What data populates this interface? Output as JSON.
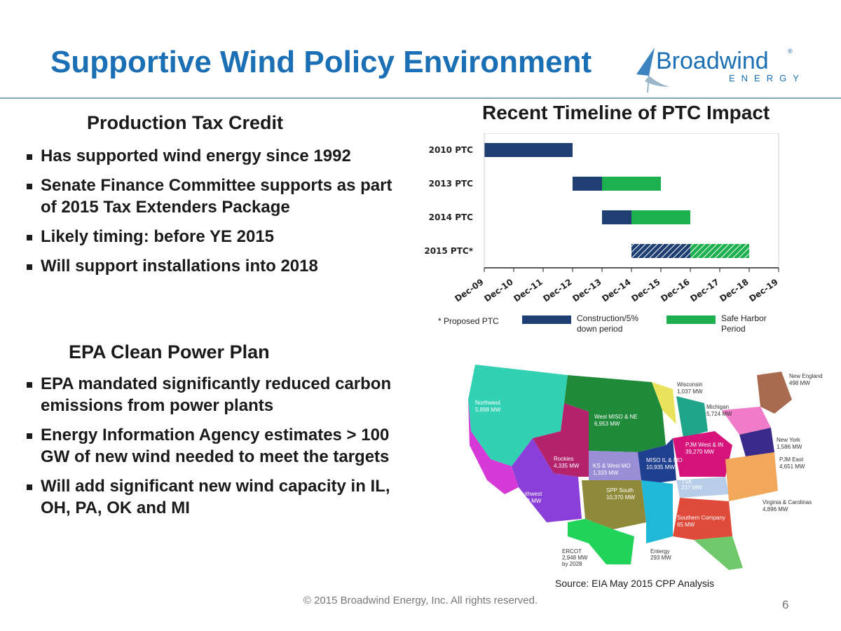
{
  "title": "Supportive Wind Policy Environment",
  "logo": {
    "name": "Broadwind",
    "sub": "ENERGY",
    "registered": "®"
  },
  "ptc_section": {
    "heading": "Production Tax Credit",
    "bullets": [
      "Has supported wind energy since 1992",
      "Senate Finance Committee supports as part of 2015 Tax Extenders Package",
      "Likely timing: before YE 2015",
      "Will support installations into 2018"
    ]
  },
  "epa_section": {
    "heading": "EPA Clean Power Plan",
    "bullets": [
      "EPA mandated significantly reduced carbon emissions from power plants",
      "Energy Information Agency estimates > 100 GW of new wind needed to meet the targets",
      "Will add significant new wind capacity in IL, OH, PA, OK and MI"
    ]
  },
  "chart_title": "Recent Timeline of PTC Impact",
  "chart_data": {
    "type": "bar",
    "orientation": "horizontal",
    "x_ticks": [
      "Dec-09",
      "Dec-10",
      "Dec-11",
      "Dec-12",
      "Dec-13",
      "Dec-14",
      "Dec-15",
      "Dec-16",
      "Dec-17",
      "Dec-18",
      "Dec-19"
    ],
    "categories": [
      "2010 PTC",
      "2013 PTC",
      "2014 PTC",
      "2015 PTC*"
    ],
    "series": [
      {
        "name": "Construction/5% down period",
        "color": "#1f3f73",
        "segments": [
          [
            "Dec-09",
            "Dec-12"
          ],
          [
            "Dec-12",
            "Dec-13"
          ],
          [
            "Dec-13",
            "Dec-14"
          ],
          [
            "Dec-14",
            "Dec-16"
          ]
        ]
      },
      {
        "name": "Safe Harbor Period",
        "color": "#1cb04f",
        "segments": [
          null,
          [
            "Dec-13",
            "Dec-15"
          ],
          [
            "Dec-14",
            "Dec-16"
          ],
          [
            "Dec-16",
            "Dec-18"
          ]
        ]
      }
    ],
    "hatched": [
      "2015 PTC*"
    ],
    "legend_note": "* Proposed PTC",
    "legend": [
      {
        "label": "Construction/5% down period",
        "color": "#1f3f73"
      },
      {
        "label": "Safe Harbor Period",
        "color": "#1cb04f"
      }
    ],
    "legend_lines": [
      [
        "Construction/5%",
        "down period"
      ],
      [
        "Safe Harbor",
        "Period"
      ]
    ]
  },
  "map": {
    "regions": [
      {
        "name": "Northwest",
        "value": "5,898 MW"
      },
      {
        "name": "West MISO & NE",
        "value": "6,953 MW"
      },
      {
        "name": "Wisconsin",
        "value": "1,037 MW"
      },
      {
        "name": "Michigan",
        "value": "5,724 MW"
      },
      {
        "name": "New England",
        "value": "498 MW"
      },
      {
        "name": "New York",
        "value": "1,586 MW"
      },
      {
        "name": "PJM West & IN",
        "value": "39,270 MW"
      },
      {
        "name": "PJM East",
        "value": "4,651 MW"
      },
      {
        "name": "MISO IL & MO",
        "value": "10,935 MW"
      },
      {
        "name": "Rockies",
        "value": "4,335 MW"
      },
      {
        "name": "KS & West MO",
        "value": "1,333 MW"
      },
      {
        "name": "TVA",
        "value": "237 MW"
      },
      {
        "name": "Southwest",
        "value": "6,528 MW"
      },
      {
        "name": "SPP South",
        "value": "10,370 MW"
      },
      {
        "name": "Virginia & Carolinas",
        "value": "4,896 MW"
      },
      {
        "name": "Southern Company",
        "value": "65 MW"
      },
      {
        "name": "ERCOT",
        "value": "2,948 MW",
        "note": "by 2028"
      },
      {
        "name": "Entergy",
        "value": "293 MW"
      }
    ]
  },
  "source": "Source: EIA May 2015 CPP Analysis",
  "footer": "© 2015 Broadwind Energy, Inc. All rights reserved.",
  "page_number": "6"
}
